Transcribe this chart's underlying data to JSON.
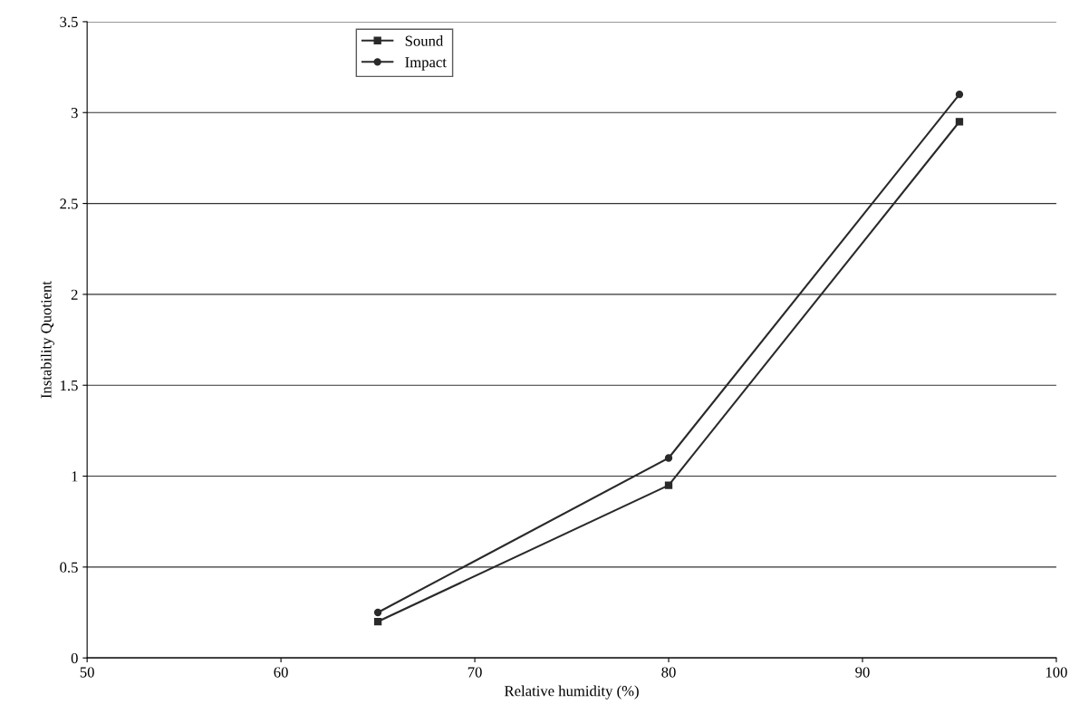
{
  "chart_data": {
    "type": "line",
    "xlabel": "Relative humidity (%)",
    "ylabel": "Instability Quotient",
    "x": [
      65,
      80,
      95
    ],
    "series": [
      {
        "name": "Sound",
        "color": "#2a2a2a",
        "marker": "square",
        "values": [
          0.2,
          0.95,
          2.95
        ]
      },
      {
        "name": "Impact",
        "color": "#2a2a2a",
        "marker": "circle",
        "values": [
          0.25,
          1.1,
          3.1
        ]
      }
    ],
    "xlim": [
      50,
      100
    ],
    "xticks": [
      50,
      60,
      70,
      80,
      90,
      100
    ],
    "ylim": [
      0,
      3.5
    ],
    "yticks": [
      0,
      0.5,
      1,
      1.5,
      2,
      2.5,
      3,
      3.5
    ],
    "grid": "y",
    "legend": "top",
    "line_style": "solid"
  }
}
